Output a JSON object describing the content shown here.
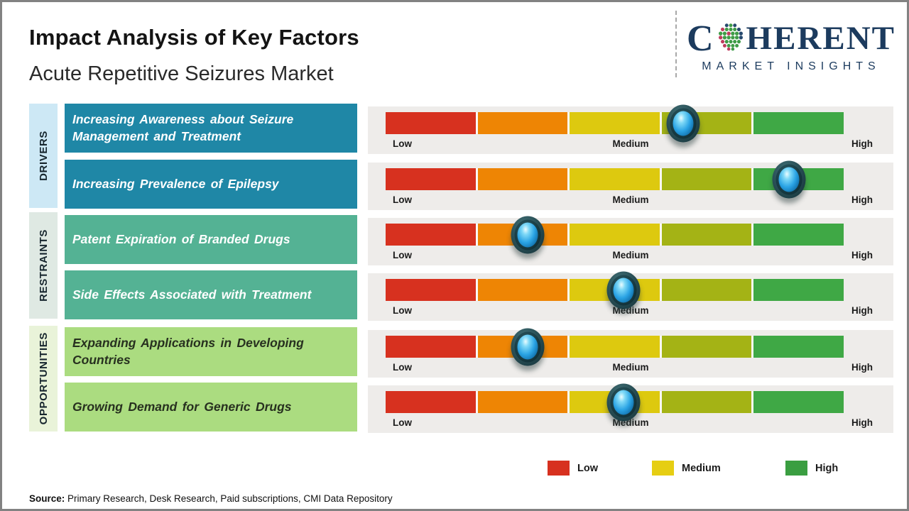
{
  "header": {
    "title": "Impact Analysis of Key Factors",
    "subtitle": "Acute Repetitive Seizures Market",
    "logo": {
      "brand_first_letter": "C",
      "brand_rest": "HERENT",
      "tagline": "MARKET INSIGHTS",
      "brand_color": "#1c3b5e"
    }
  },
  "groups": [
    {
      "label": "DRIVERS",
      "strip_color": "#cde8f5",
      "box_color": "#1f87a6"
    },
    {
      "label": "RESTRAINTS",
      "strip_color": "#dfe9e3",
      "box_color": "#54b294"
    },
    {
      "label": "OPPORTUNITIES",
      "strip_color": "#e9f3d9",
      "box_color": "#abdc80"
    }
  ],
  "rows": [
    {
      "group": "DRIVERS",
      "label": "Increasing Awareness about Seizure Management and Treatment",
      "marker_pct": 65
    },
    {
      "group": "DRIVERS",
      "label": "Increasing Prevalence of Epilepsy",
      "marker_pct": 88
    },
    {
      "group": "RESTRAINTS",
      "label": "Patent Expiration of Branded Drugs",
      "marker_pct": 31
    },
    {
      "group": "RESTRAINTS",
      "label": "Side Effects Associated with Treatment",
      "marker_pct": 52
    },
    {
      "group": "OPPORTUNITIES",
      "label": "Expanding Applications in Developing Countries",
      "marker_pct": 31
    },
    {
      "group": "OPPORTUNITIES",
      "label": "Growing Demand for Generic Drugs",
      "marker_pct": 52
    }
  ],
  "scale": {
    "low": "Low",
    "medium": "Medium",
    "high": "High",
    "segment_colors": [
      "#d7311f",
      "#ee8504",
      "#ddc90f",
      "#a4b315",
      "#3fa845"
    ]
  },
  "legend": [
    {
      "label": "Low",
      "color": "#d7311f"
    },
    {
      "label": "Medium",
      "color": "#e6ce13"
    },
    {
      "label": "High",
      "color": "#3a9e41"
    }
  ],
  "source": {
    "prefix": "Source:",
    "text": " Primary Research, Desk Research, Paid subscriptions, CMI Data Repository"
  },
  "chart_data": {
    "type": "table",
    "title": "Impact Analysis of Key Factors",
    "subtitle": "Acute Repetitive Seizures Market",
    "scale_labels": [
      "Low",
      "Medium",
      "High"
    ],
    "scale_range_pct": [
      0,
      100
    ],
    "segment_colors": [
      "#d7311f",
      "#ee8504",
      "#ddc90f",
      "#a4b315",
      "#3fa845"
    ],
    "rows": [
      {
        "category": "DRIVERS",
        "factor": "Increasing Awareness about Seizure Management and Treatment",
        "impact_pct": 65,
        "impact_level": "Medium-High"
      },
      {
        "category": "DRIVERS",
        "factor": "Increasing Prevalence of Epilepsy",
        "impact_pct": 88,
        "impact_level": "High"
      },
      {
        "category": "RESTRAINTS",
        "factor": "Patent Expiration of Branded Drugs",
        "impact_pct": 31,
        "impact_level": "Low-Medium"
      },
      {
        "category": "RESTRAINTS",
        "factor": "Side Effects Associated with Treatment",
        "impact_pct": 52,
        "impact_level": "Medium"
      },
      {
        "category": "OPPORTUNITIES",
        "factor": "Expanding Applications in Developing Countries",
        "impact_pct": 31,
        "impact_level": "Low-Medium"
      },
      {
        "category": "OPPORTUNITIES",
        "factor": "Growing Demand for Generic Drugs",
        "impact_pct": 52,
        "impact_level": "Medium"
      }
    ],
    "legend": [
      {
        "label": "Low",
        "color": "#d7311f"
      },
      {
        "label": "Medium",
        "color": "#e6ce13"
      },
      {
        "label": "High",
        "color": "#3a9e41"
      }
    ],
    "source": "Primary Research, Desk Research, Paid subscriptions, CMI Data Repository"
  }
}
